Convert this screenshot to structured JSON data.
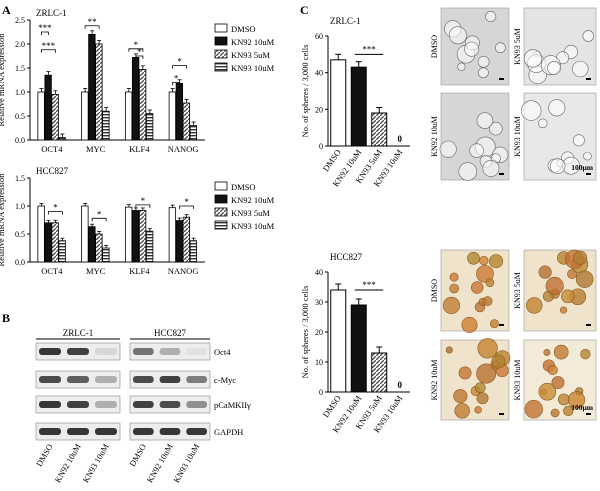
{
  "panels": {
    "A": "A",
    "B": "B",
    "C": "C"
  },
  "colors": {
    "dmso": "#ffffff",
    "kn92": "#111111",
    "kn93_5": "#9a9a9a",
    "kn93_10": "#6e6e6e",
    "photo_zrlc": "#cfcfcf",
    "photo_hcc": "#d9a55a"
  },
  "chart_data": [
    {
      "type": "bar",
      "title": "ZRLC-1",
      "ylabel": "Relative mRNA expression",
      "ylim": [
        0,
        2.5
      ],
      "yticks": [
        "0.0",
        "0.5",
        "1.0",
        "1.5",
        "2.0",
        "2.5"
      ],
      "categories": [
        "OCT4",
        "MYC",
        "KLF4",
        "NANOG"
      ],
      "legend": "right",
      "series": [
        {
          "name": "DMSO",
          "values": [
            1.0,
            1.0,
            1.0,
            1.0
          ]
        },
        {
          "name": "KN92 10uM",
          "values": [
            1.35,
            2.2,
            1.72,
            1.18
          ]
        },
        {
          "name": "KN93 5uM",
          "values": [
            0.95,
            2.0,
            1.47,
            0.77
          ]
        },
        {
          "name": "KN93 10uM",
          "values": [
            0.05,
            0.6,
            0.55,
            0.3
          ]
        }
      ],
      "annotations": [
        "***",
        "***",
        "**",
        "*",
        "*",
        "*",
        "*"
      ]
    },
    {
      "type": "bar",
      "title": "HCC827",
      "ylabel": "Relative mRNA expression",
      "ylim": [
        0,
        1.5
      ],
      "yticks": [
        "0.0",
        "0.5",
        "1.0",
        "1.5"
      ],
      "categories": [
        "OCT4",
        "MYC",
        "KLF4",
        "NANOG"
      ],
      "legend": "right",
      "series": [
        {
          "name": "DMSO",
          "values": [
            1.0,
            1.0,
            0.98,
            0.97
          ]
        },
        {
          "name": "KN92 10uM",
          "values": [
            0.7,
            0.63,
            0.92,
            0.74
          ]
        },
        {
          "name": "KN93 5uM",
          "values": [
            0.7,
            0.5,
            0.92,
            0.8
          ]
        },
        {
          "name": "KN93 10uM",
          "values": [
            0.38,
            0.25,
            0.55,
            0.38
          ]
        }
      ],
      "annotations": [
        "*",
        "*",
        "*",
        "*"
      ]
    },
    {
      "type": "bar",
      "title": "ZRLC-1",
      "ylabel": "No. of spheres / 3,000 cells",
      "ylim": [
        0,
        60
      ],
      "yticks": [
        "0",
        "20",
        "40",
        "60"
      ],
      "categories": [
        "DMSO",
        "KN92 10uM",
        "KN93 5uM",
        "KN93 10uM"
      ],
      "values": [
        47,
        43,
        18,
        0
      ],
      "data_labels": [
        "",
        "",
        "",
        "0"
      ],
      "annotations": [
        "***"
      ]
    },
    {
      "type": "bar",
      "title": "HCC827",
      "ylabel": "No. of spheres / 3,000 cells",
      "ylim": [
        0,
        40
      ],
      "yticks": [
        "0",
        "10",
        "20",
        "30",
        "40"
      ],
      "categories": [
        "DMSO",
        "KN92 10uM",
        "KN93 5uM",
        "KN93 10uM"
      ],
      "values": [
        34,
        29,
        13,
        0
      ],
      "data_labels": [
        "",
        "",
        "",
        "0"
      ],
      "annotations": [
        "***"
      ]
    }
  ],
  "western": {
    "groups": [
      "ZRLC-1",
      "HCC827"
    ],
    "proteins": [
      "Oct4",
      "c-Myc",
      "pCaMKIIγ",
      "GAPDH"
    ],
    "lanes": [
      "DMSO",
      "KN92 10uM",
      "KN93 10uM"
    ],
    "intensity": {
      "ZRLC-1": [
        [
          0.9,
          0.85,
          0.1
        ],
        [
          0.8,
          0.7,
          0.3
        ],
        [
          0.9,
          0.85,
          0.3
        ],
        [
          0.9,
          0.9,
          0.9
        ]
      ],
      "HCC827": [
        [
          0.6,
          0.3,
          0.05
        ],
        [
          0.8,
          0.85,
          0.55
        ],
        [
          0.85,
          0.8,
          0.45
        ],
        [
          0.9,
          0.9,
          0.9
        ]
      ]
    }
  },
  "photos": {
    "zrlc": [
      "DMSO",
      "KN93 5uM",
      "KN92 10uM",
      "KN93 10uM"
    ],
    "hcc": [
      "DMSO",
      "KN93 5uM",
      "KN92 10uM",
      "KN93 10uM"
    ],
    "scale_label": "100μm"
  }
}
